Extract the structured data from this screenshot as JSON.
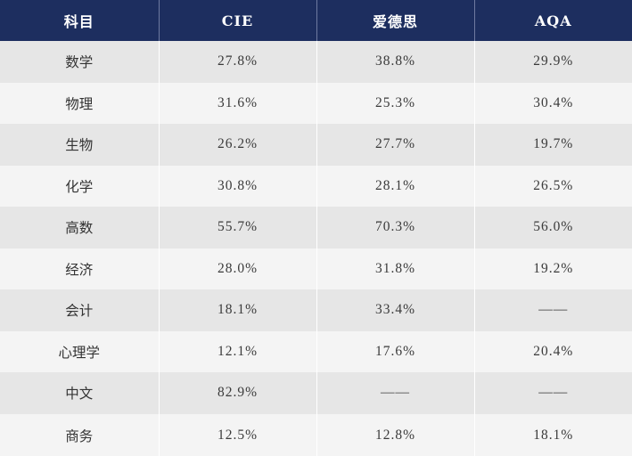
{
  "table": {
    "headers": [
      "科目",
      "CIE",
      "爱德思",
      "AQA"
    ],
    "rows": [
      [
        "数学",
        "27.8%",
        "38.8%",
        "29.9%"
      ],
      [
        "物理",
        "31.6%",
        "25.3%",
        "30.4%"
      ],
      [
        "生物",
        "26.2%",
        "27.7%",
        "19.7%"
      ],
      [
        "化学",
        "30.8%",
        "28.1%",
        "26.5%"
      ],
      [
        "高数",
        "55.7%",
        "70.3%",
        "56.0%"
      ],
      [
        "经济",
        "28.0%",
        "31.8%",
        "19.2%"
      ],
      [
        "会计",
        "18.1%",
        "33.4%",
        "——"
      ],
      [
        "心理学",
        "12.1%",
        "17.6%",
        "20.4%"
      ],
      [
        "中文",
        "82.9%",
        "——",
        "——"
      ],
      [
        "商务",
        "12.5%",
        "12.8%",
        "18.1%"
      ]
    ]
  },
  "colors": {
    "header_bg": "#1d2e5f",
    "header_text": "#ffffff",
    "row_odd": "#e6e6e6",
    "row_even": "#f4f4f4"
  }
}
